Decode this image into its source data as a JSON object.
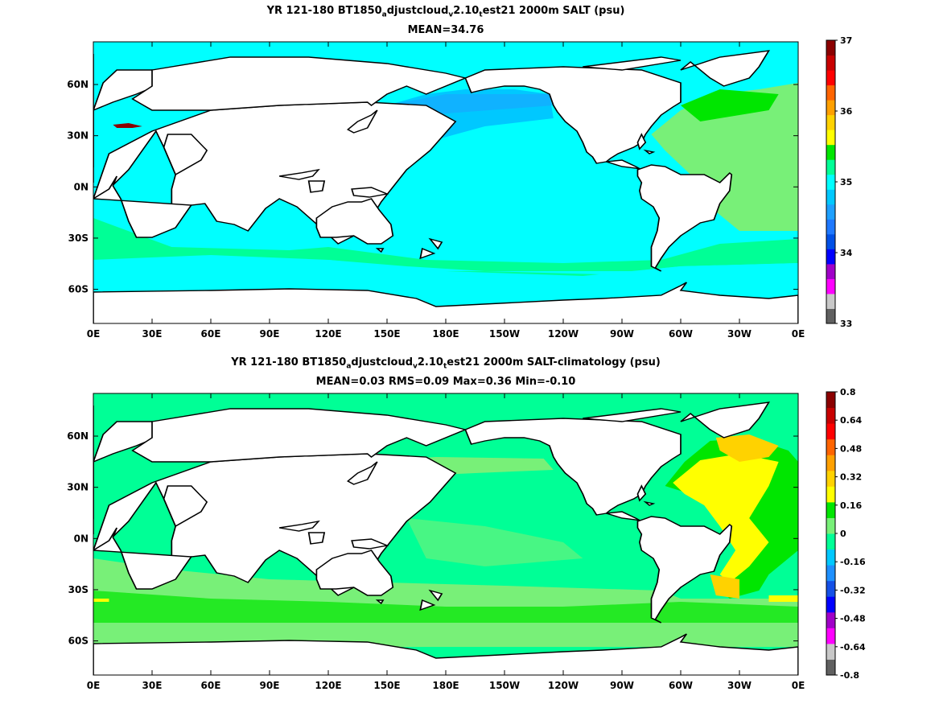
{
  "chart_data": [
    {
      "type": "heatmap",
      "title": {
        "pre": "YR 121-180 BT1850",
        "sub1": "a",
        "mid1": "djustcloud",
        "sub2": "v",
        "mid2": "2.10",
        "sub3": "t",
        "post": "est21 2000m SALT (psu)"
      },
      "subtitle": "MEAN=34.76",
      "x_ticks": [
        "0E",
        "30E",
        "60E",
        "90E",
        "120E",
        "150E",
        "180E",
        "150W",
        "120W",
        "90W",
        "60W",
        "30W",
        "0E"
      ],
      "y_ticks": [
        "60N",
        "30N",
        "0N",
        "30S",
        "60S"
      ],
      "y_values": [
        60,
        30,
        0,
        -30,
        -60
      ],
      "ylim": [
        -80,
        85
      ],
      "colorbar": {
        "labels": [
          "37",
          "36",
          "35",
          "34",
          "33"
        ],
        "values": [
          37,
          36,
          35,
          34,
          33
        ],
        "range": [
          33,
          37
        ]
      },
      "regions": {
        "global_background": 34.9,
        "north_pacific": 34.6,
        "north_atlantic": 35.0,
        "mediterranean": 36.9
      }
    },
    {
      "type": "heatmap",
      "title": {
        "pre": "YR 121-180 BT1850",
        "sub1": "a",
        "mid1": "djustcloud",
        "sub2": "v",
        "mid2": "2.10",
        "sub3": "t",
        "post": "est21 2000m SALT-climatology (psu)"
      },
      "subtitle": "MEAN=0.03   RMS=0.09   Max=0.36   Min=-0.10",
      "x_ticks": [
        "0E",
        "30E",
        "60E",
        "90E",
        "120E",
        "150E",
        "180E",
        "150W",
        "120W",
        "90W",
        "60W",
        "30W",
        "0E"
      ],
      "y_ticks": [
        "60N",
        "30N",
        "0N",
        "30S",
        "60S"
      ],
      "y_values": [
        60,
        30,
        0,
        -30,
        -60
      ],
      "ylim": [
        -80,
        85
      ],
      "colorbar": {
        "labels": [
          "0.8",
          "0.64",
          "0.48",
          "0.32",
          "0.16",
          "0",
          "-0.16",
          "-0.32",
          "-0.48",
          "-0.64",
          "-0.8"
        ],
        "values": [
          0.8,
          0.64,
          0.48,
          0.32,
          0.16,
          0,
          -0.16,
          -0.32,
          -0.48,
          -0.64,
          -0.8
        ],
        "range": [
          -0.8,
          0.8
        ]
      },
      "regions": {
        "global_background": 0.05,
        "southern_ocean_band": 0.1,
        "north_atlantic": 0.2,
        "labrador_sea": 0.3
      }
    }
  ],
  "colors": {
    "salt_levels": [
      "#606060",
      "#c8c8c8",
      "#ff00ff",
      "#a000c8",
      "#0000ff",
      "#0050e6",
      "#1e78ff",
      "#1ea0ff",
      "#00c8ff",
      "#00ffff",
      "#00ff96",
      "#00e600",
      "#ffff00",
      "#ffd200",
      "#ffa000",
      "#ff6400",
      "#ff0000",
      "#c80000",
      "#8b0000"
    ],
    "anom_levels": [
      "#606060",
      "#c8c8c8",
      "#ff00ff",
      "#a000c8",
      "#0000ff",
      "#1450e6",
      "#1e90ff",
      "#00c8ff",
      "#00ff96",
      "#78f078",
      "#00e600",
      "#ffff00",
      "#ffd200",
      "#ffa000",
      "#ff6400",
      "#ff0000",
      "#c80000",
      "#8b0000"
    ],
    "land": "#ffffff",
    "coast": "#000000"
  }
}
